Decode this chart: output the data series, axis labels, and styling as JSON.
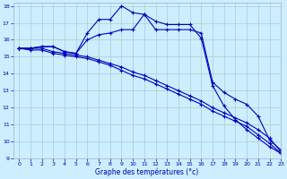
{
  "xlabel": "Graphe des températures (°c)",
  "xlim": [
    -0.5,
    23
  ],
  "ylim": [
    9,
    18.2
  ],
  "yticks": [
    9,
    10,
    11,
    12,
    13,
    14,
    15,
    16,
    17,
    18
  ],
  "xticks": [
    0,
    1,
    2,
    3,
    4,
    5,
    6,
    7,
    8,
    9,
    10,
    11,
    12,
    13,
    14,
    15,
    16,
    17,
    18,
    19,
    20,
    21,
    22,
    23
  ],
  "background_color": "#cceeff",
  "line_color": "#0000bb",
  "grid_color": "#aacccc",
  "lines": [
    {
      "x": [
        0,
        1,
        2,
        3,
        4,
        5,
        6,
        7,
        8,
        9,
        10,
        11,
        12,
        13,
        14,
        15,
        16,
        17,
        18,
        19,
        20,
        21,
        22,
        23
      ],
      "y": [
        15.5,
        15.5,
        15.6,
        15.6,
        15.3,
        15.2,
        16.4,
        17.2,
        17.2,
        18.0,
        17.6,
        17.5,
        17.1,
        16.9,
        16.9,
        16.9,
        16.1,
        13.3,
        12.1,
        11.3,
        10.7,
        10.2,
        9.7,
        9.3
      ]
    },
    {
      "x": [
        0,
        1,
        2,
        3,
        4,
        5,
        6,
        7,
        8,
        9,
        10,
        11,
        12,
        13,
        14,
        15,
        16,
        17,
        18,
        19,
        20,
        21,
        22,
        23
      ],
      "y": [
        15.5,
        15.5,
        15.6,
        15.6,
        15.3,
        15.2,
        16.0,
        16.3,
        16.4,
        16.6,
        16.6,
        17.5,
        16.6,
        16.6,
        16.6,
        16.6,
        16.4,
        13.5,
        12.9,
        12.5,
        12.2,
        11.5,
        10.1,
        9.5
      ]
    },
    {
      "x": [
        0,
        1,
        2,
        3,
        4,
        5,
        6,
        7,
        8,
        9,
        10,
        11,
        12,
        13,
        14,
        15,
        16,
        17,
        18,
        19,
        20,
        21,
        22,
        23
      ],
      "y": [
        15.5,
        15.5,
        15.5,
        15.3,
        15.2,
        15.1,
        15.0,
        14.8,
        14.6,
        14.4,
        14.1,
        13.9,
        13.6,
        13.3,
        13.0,
        12.7,
        12.4,
        12.0,
        11.7,
        11.4,
        11.1,
        10.7,
        10.2,
        9.4
      ]
    },
    {
      "x": [
        0,
        1,
        2,
        3,
        4,
        5,
        6,
        7,
        8,
        9,
        10,
        11,
        12,
        13,
        14,
        15,
        16,
        17,
        18,
        19,
        20,
        21,
        22,
        23
      ],
      "y": [
        15.5,
        15.4,
        15.4,
        15.2,
        15.1,
        15.0,
        14.9,
        14.7,
        14.5,
        14.2,
        13.9,
        13.7,
        13.4,
        13.1,
        12.8,
        12.5,
        12.2,
        11.8,
        11.5,
        11.2,
        10.9,
        10.4,
        9.9,
        9.3
      ]
    }
  ]
}
